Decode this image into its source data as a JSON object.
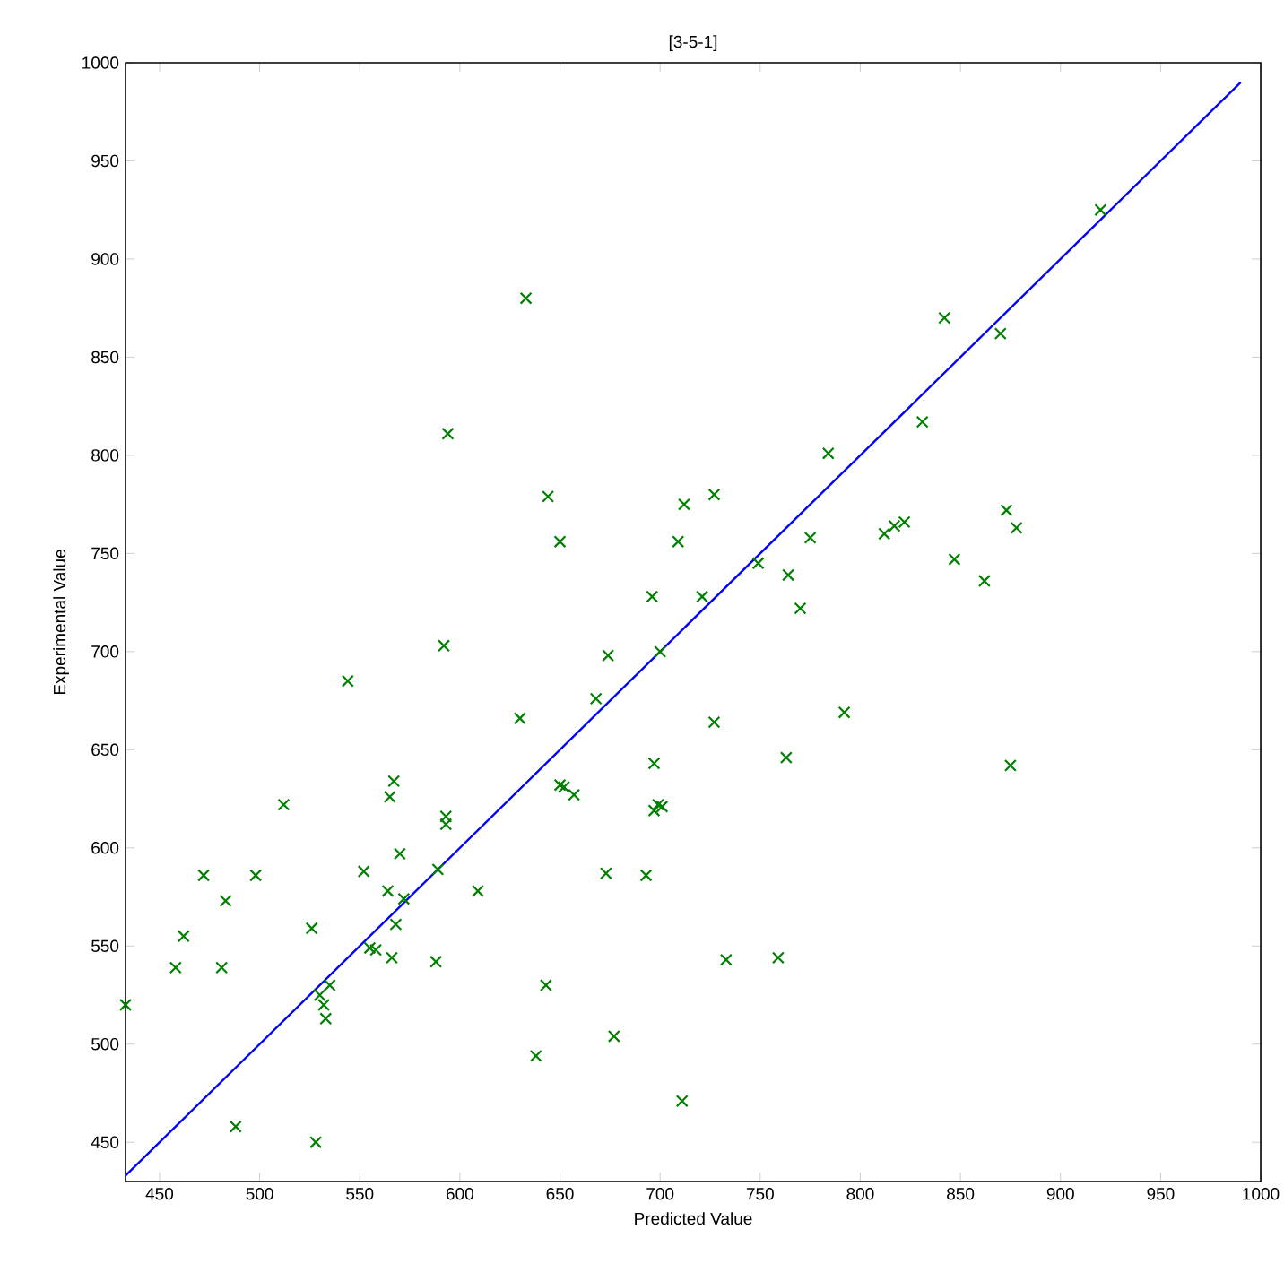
{
  "chart_data": {
    "type": "scatter",
    "title": "[3-5-1]",
    "xlabel": "Predicted Value",
    "ylabel": "Experimental Value",
    "xlim": [
      433,
      1000
    ],
    "ylim": [
      430,
      1000
    ],
    "xticks": [
      450,
      500,
      550,
      600,
      650,
      700,
      750,
      800,
      850,
      900,
      950,
      1000
    ],
    "yticks": [
      450,
      500,
      550,
      600,
      650,
      700,
      750,
      800,
      850,
      900,
      950,
      1000
    ],
    "grid": false,
    "series": [
      {
        "color": "#008000",
        "marker": "cross",
        "x": [
          433,
          458,
          462,
          472,
          481,
          483,
          488,
          498,
          512,
          526,
          528,
          530,
          532,
          533,
          535,
          544,
          552,
          555,
          558,
          564,
          565,
          566,
          567,
          568,
          570,
          572,
          588,
          589,
          592,
          593,
          593,
          594,
          609,
          630,
          633,
          638,
          643,
          644,
          650,
          650,
          652,
          657,
          668,
          673,
          674,
          677,
          693,
          696,
          697,
          697,
          699,
          700,
          701,
          709,
          711,
          712,
          721,
          727,
          727,
          733,
          749,
          759,
          763,
          764,
          770,
          775,
          784,
          792,
          812,
          817,
          822,
          831,
          842,
          847,
          862,
          870,
          873,
          875,
          878,
          920
        ],
        "values": [
          520,
          539,
          555,
          586,
          539,
          573,
          458,
          586,
          622,
          559,
          450,
          525,
          520,
          513,
          530,
          685,
          588,
          549,
          548,
          578,
          626,
          544,
          634,
          561,
          597,
          574,
          542,
          589,
          703,
          616,
          612,
          811,
          578,
          666,
          880,
          494,
          530,
          779,
          632,
          756,
          631,
          627,
          676,
          587,
          698,
          504,
          586,
          728,
          619,
          643,
          622,
          700,
          621,
          756,
          471,
          775,
          728,
          664,
          780,
          543,
          745,
          544,
          646,
          739,
          722,
          758,
          801,
          669,
          760,
          764,
          766,
          817,
          870,
          747,
          736,
          862,
          772,
          642,
          763,
          925
        ]
      },
      {
        "type": "line",
        "color": "#0000ff",
        "marker": "none",
        "line_style": "solid",
        "x": [
          433,
          990
        ],
        "values": [
          433,
          990
        ]
      }
    ]
  }
}
